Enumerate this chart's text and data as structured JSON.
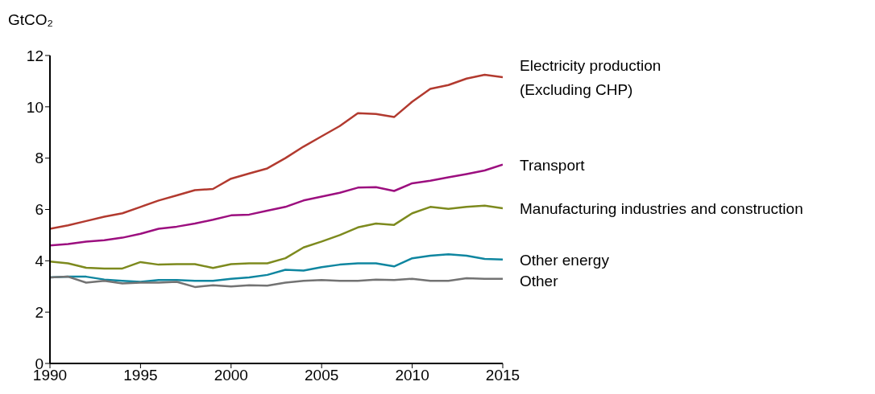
{
  "chart_data": {
    "type": "line",
    "ylabel": "GtCO₂",
    "x": [
      1990,
      1991,
      1992,
      1993,
      1994,
      1995,
      1996,
      1997,
      1998,
      1999,
      2000,
      2001,
      2002,
      2003,
      2004,
      2005,
      2006,
      2007,
      2008,
      2009,
      2010,
      2011,
      2012,
      2013,
      2014,
      2015
    ],
    "xlim": [
      1990,
      2015
    ],
    "xticks": [
      1990,
      1995,
      2000,
      2005,
      2010,
      2015
    ],
    "ylim": [
      0,
      12
    ],
    "yticks": [
      0,
      2,
      4,
      6,
      8,
      10,
      12
    ],
    "grid": false,
    "legend": false,
    "marker": "none",
    "line_style": "solid",
    "series": [
      {
        "name": "Electricity production\n(Excluding CHP)",
        "color": "#b23a2f",
        "values": [
          5.25,
          5.38,
          5.55,
          5.72,
          5.85,
          6.1,
          6.35,
          6.55,
          6.75,
          6.8,
          7.2,
          7.4,
          7.6,
          8.0,
          8.45,
          8.85,
          9.25,
          9.75,
          9.72,
          9.6,
          10.2,
          10.7,
          10.85,
          11.1,
          11.25,
          11.15
        ]
      },
      {
        "name": "Transport",
        "color": "#9c0f7f",
        "values": [
          4.6,
          4.65,
          4.75,
          4.8,
          4.9,
          5.05,
          5.25,
          5.33,
          5.45,
          5.6,
          5.77,
          5.8,
          5.95,
          6.1,
          6.35,
          6.5,
          6.65,
          6.85,
          6.87,
          6.72,
          7.02,
          7.12,
          7.25,
          7.38,
          7.52,
          7.75
        ]
      },
      {
        "name": "Manufacturing industries and construction",
        "color": "#7d8a1e",
        "values": [
          3.97,
          3.9,
          3.73,
          3.7,
          3.7,
          3.95,
          3.85,
          3.87,
          3.87,
          3.72,
          3.87,
          3.9,
          3.9,
          4.1,
          4.52,
          4.75,
          5.0,
          5.3,
          5.45,
          5.4,
          5.85,
          6.1,
          6.02,
          6.1,
          6.15,
          6.05
        ]
      },
      {
        "name": "Other energy",
        "color": "#0f86a0",
        "values": [
          3.35,
          3.38,
          3.38,
          3.27,
          3.22,
          3.18,
          3.25,
          3.25,
          3.22,
          3.22,
          3.3,
          3.35,
          3.45,
          3.65,
          3.62,
          3.75,
          3.85,
          3.9,
          3.9,
          3.78,
          4.1,
          4.2,
          4.25,
          4.2,
          4.07,
          4.05
        ]
      },
      {
        "name": "Other",
        "color": "#737373",
        "values": [
          3.35,
          3.38,
          3.15,
          3.22,
          3.12,
          3.15,
          3.15,
          3.18,
          2.98,
          3.05,
          3.0,
          3.05,
          3.03,
          3.15,
          3.22,
          3.25,
          3.22,
          3.22,
          3.27,
          3.25,
          3.3,
          3.22,
          3.22,
          3.32,
          3.3,
          3.3
        ]
      }
    ]
  }
}
